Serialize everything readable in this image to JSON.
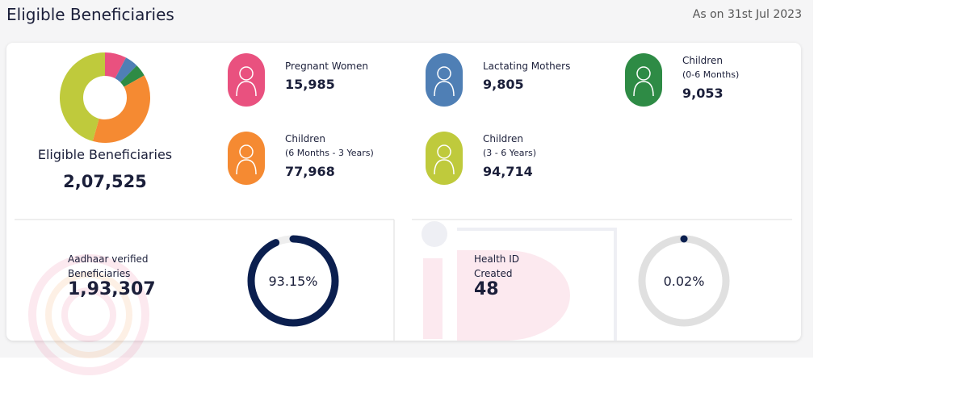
{
  "header": {
    "title": "Eligible Beneficiaries",
    "date": "As on 31st Jul 2023"
  },
  "summary": {
    "label": "Eligible Beneficiaries",
    "total": "2,07,525"
  },
  "groups": [
    {
      "label": "Pregnant Women",
      "value": 15985,
      "value_label": "15,985",
      "color": "#e9517f"
    },
    {
      "label": "Lactating Mothers",
      "value": 9805,
      "value_label": "9,805",
      "color": "#4f7fb5"
    },
    {
      "label": "Children",
      "sublabel": "(0-6 Months)",
      "value": 9053,
      "value_label": "9,053",
      "color": "#2e8b45"
    },
    {
      "label": "Children",
      "sublabel": "(6 Months - 3 Years)",
      "value": 77968,
      "value_label": "77,968",
      "color": "#f58a32"
    },
    {
      "label": "Children",
      "sublabel": "(3 - 6 Years)",
      "value": 94714,
      "value_label": "94,714",
      "color": "#bfca3c"
    }
  ],
  "aadhaar": {
    "label": "Aadhaar verified Beneficiaries",
    "value": "1,93,307",
    "percent": 93.15,
    "percent_label": "93.15%",
    "color": "#0b1f4f"
  },
  "health_id": {
    "label": "Health ID Created",
    "value": 48,
    "percent": 0.02,
    "percent_label": "0.02%",
    "color": "#0b1f4f"
  }
}
